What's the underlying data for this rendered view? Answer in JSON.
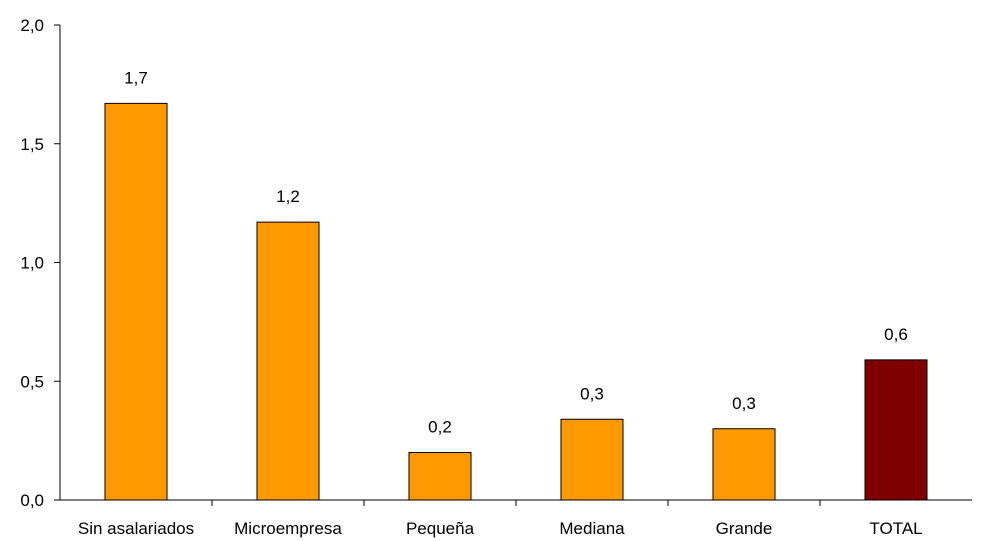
{
  "chart_data": {
    "type": "bar",
    "categories": [
      "Sin asalariados",
      "Microempresa",
      "Pequeña",
      "Mediana",
      "Grande",
      "TOTAL"
    ],
    "values": [
      1.67,
      1.17,
      0.2,
      0.34,
      0.3,
      0.59
    ],
    "data_labels": [
      "1,7",
      "1,2",
      "0,2",
      "0,3",
      "0,3",
      "0,6"
    ],
    "title": "",
    "xlabel": "",
    "ylabel": "",
    "ylim": [
      0,
      2
    ],
    "yticks": [
      0,
      0.5,
      1,
      1.5,
      2
    ],
    "ytick_labels": [
      "0,0",
      "0,5",
      "1,0",
      "1,5",
      "2,0"
    ],
    "grid": false,
    "legend": "none",
    "bar_colors": [
      "#FF9900",
      "#FF9900",
      "#FF9900",
      "#FF9900",
      "#FF9900",
      "#800000"
    ],
    "bar_outline": "#000000"
  }
}
